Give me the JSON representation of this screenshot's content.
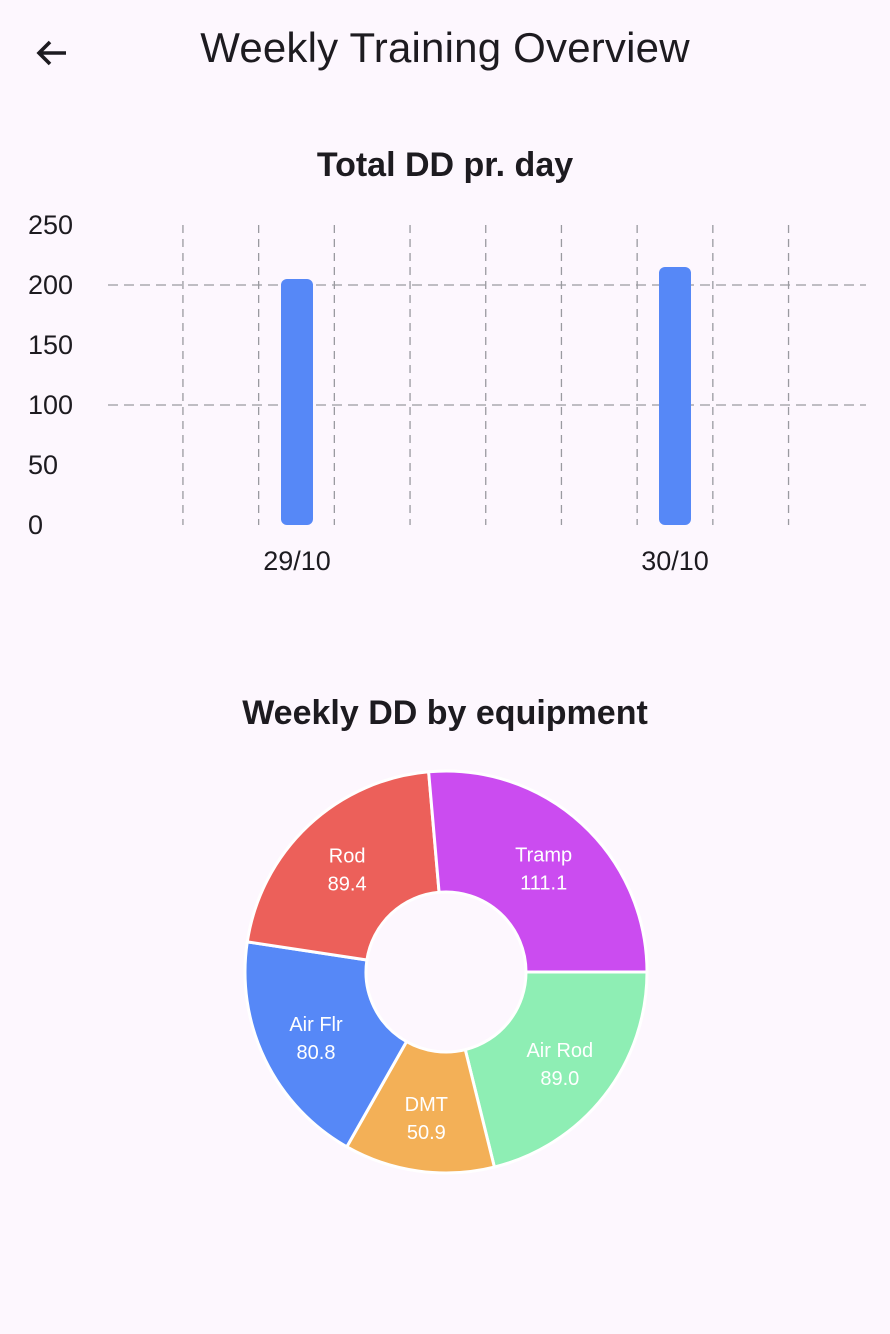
{
  "header": {
    "title": "Weekly Training Overview",
    "back_icon": "arrow-back-icon"
  },
  "colors": {
    "background": "#fdf7fe",
    "bar": "#5688f7",
    "grid": "#9a9aa0"
  },
  "chart_data": [
    {
      "type": "bar",
      "title": "Total DD pr. day",
      "categories": [
        "29/10",
        "30/10"
      ],
      "values": [
        205,
        215
      ],
      "ylim": [
        0,
        250
      ],
      "yticks": [
        "0",
        "50",
        "100",
        "150",
        "200",
        "250"
      ],
      "grid": true
    },
    {
      "type": "pie",
      "title": "Weekly DD by equipment",
      "donut": true,
      "slices": [
        {
          "label": "Air Rod",
          "value": 89.0,
          "value_label": "89.0",
          "color": "#8eeeb4"
        },
        {
          "label": "DMT",
          "value": 50.9,
          "value_label": "50.9",
          "color": "#f3b057"
        },
        {
          "label": "Air Flr",
          "value": 80.8,
          "value_label": "80.8",
          "color": "#5688f7"
        },
        {
          "label": "Rod",
          "value": 89.4,
          "value_label": "89.4",
          "color": "#ec605a"
        },
        {
          "label": "Tramp",
          "value": 111.1,
          "value_label": "111.1",
          "color": "#cb4cf0"
        }
      ]
    }
  ]
}
